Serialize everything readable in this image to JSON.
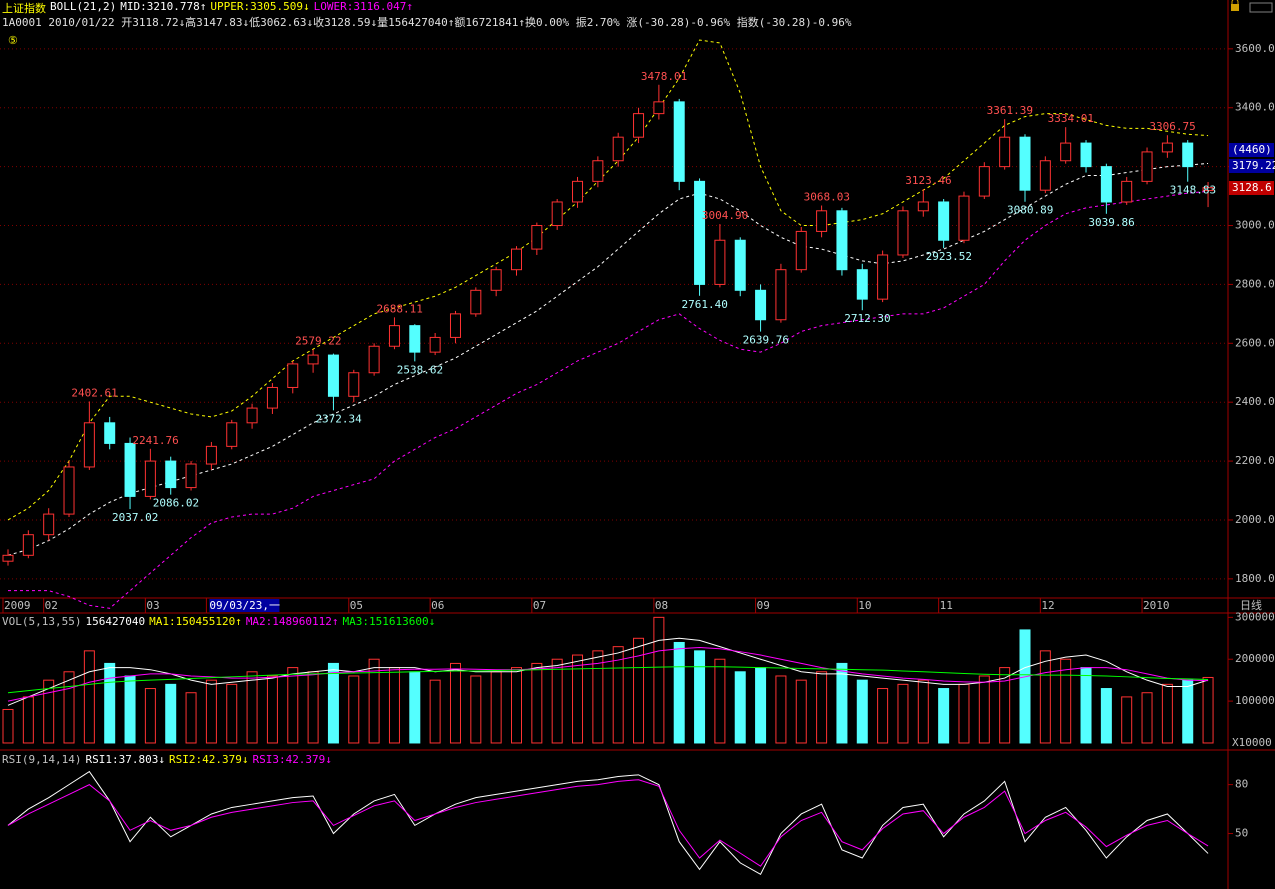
{
  "chart_data": [
    {
      "type": "candlestick",
      "title": "上证指数",
      "indicator": "BOLL(21,2)",
      "legend": [
        {
          "text": "MID:3210.778↑",
          "color": "#ffffff"
        },
        {
          "text": "UPPER:3305.509↓",
          "color": "#ffff00"
        },
        {
          "text": "LOWER:3116.047↑",
          "color": "#ff00ff"
        }
      ],
      "info": "1A0001 2010/01/22 开3118.72↓高3147.83↓低3062.63↓收3128.59↓量156427040↑额16721841↑换0.00% 振2.70% 涨(-30.28)-0.96% 指数(-30.28)-0.96%",
      "marker": "⑤",
      "period": "日线",
      "badges": [
        {
          "text": "(4460)",
          "color": "#0000a0"
        },
        {
          "text": "3179.22",
          "color": "#0000a0"
        },
        {
          "text": "3128.6",
          "color": "#c00000"
        }
      ],
      "categories": [
        "2009",
        null,
        "02",
        null,
        null,
        null,
        null,
        "03",
        null,
        null,
        "09/03/23,一",
        null,
        null,
        null,
        null,
        null,
        null,
        "05",
        null,
        null,
        null,
        "06",
        null,
        null,
        null,
        null,
        "07",
        null,
        null,
        null,
        null,
        null,
        "08",
        null,
        null,
        null,
        null,
        "09",
        null,
        null,
        null,
        null,
        "10",
        null,
        null,
        null,
        "11",
        null,
        null,
        null,
        null,
        "12",
        null,
        null,
        null,
        null,
        "2010",
        null,
        null,
        null
      ],
      "open": [
        1860,
        1880,
        1950,
        2020,
        2180,
        2330,
        2260,
        2080,
        2200,
        2110,
        2190,
        2250,
        2330,
        2380,
        2450,
        2530,
        2560,
        2420,
        2500,
        2590,
        2660,
        2570,
        2620,
        2700,
        2780,
        2850,
        2920,
        3000,
        3080,
        3150,
        3220,
        3300,
        3380,
        3420,
        3150,
        2800,
        2950,
        2780,
        2680,
        2850,
        2980,
        3050,
        2850,
        2750,
        2900,
        3050,
        3080,
        2950,
        3100,
        3200,
        3300,
        3120,
        3220,
        3280,
        3200,
        3080,
        3150,
        3250,
        3280,
        3118.72
      ],
      "high": [
        1900,
        1965,
        2040,
        2200,
        2402.61,
        2350,
        2280,
        2241.76,
        2215,
        2200,
        2265,
        2340,
        2395,
        2465,
        2540,
        2579.22,
        2565,
        2510,
        2600,
        2688.11,
        2665,
        2635,
        2710,
        2790,
        2860,
        2930,
        3010,
        3090,
        3165,
        3235,
        3315,
        3400,
        3478.01,
        3430,
        3160,
        3004.9,
        2960,
        2800,
        2870,
        2995,
        3068.03,
        3060,
        2870,
        2915,
        3065,
        3123.46,
        3090,
        3115,
        3215,
        3361.39,
        3310,
        3235,
        3334.01,
        3290,
        3210,
        3165,
        3265,
        3306.75,
        3290,
        3147.83
      ],
      "low": [
        1845,
        1870,
        1930,
        2010,
        2170,
        2240,
        2037.02,
        2070,
        2086.02,
        2100,
        2170,
        2240,
        2310,
        2360,
        2430,
        2500,
        2372.34,
        2400,
        2490,
        2580,
        2538.62,
        2560,
        2600,
        2690,
        2760,
        2830,
        2900,
        2985,
        3060,
        3130,
        3200,
        3280,
        3360,
        3120,
        2761.4,
        2790,
        2760,
        2639.76,
        2670,
        2840,
        2960,
        2830,
        2712.3,
        2740,
        2890,
        3030,
        2923.52,
        2940,
        3090,
        3190,
        3080.89,
        3110,
        3210,
        3180,
        3039.86,
        3070,
        3140,
        3230,
        3148.83,
        3062.63
      ],
      "close": [
        1880,
        1950,
        2020,
        2180,
        2330,
        2260,
        2080,
        2200,
        2110,
        2190,
        2250,
        2330,
        2380,
        2450,
        2530,
        2560,
        2420,
        2500,
        2590,
        2660,
        2570,
        2620,
        2700,
        2780,
        2850,
        2920,
        3000,
        3080,
        3150,
        3220,
        3300,
        3380,
        3420,
        3150,
        2800,
        2950,
        2780,
        2680,
        2850,
        2980,
        3050,
        2850,
        2750,
        2900,
        3050,
        3080,
        2950,
        3100,
        3200,
        3300,
        3120,
        3220,
        3280,
        3200,
        3080,
        3150,
        3250,
        3280,
        3200,
        3128.59
      ],
      "up_color": "#ff3232",
      "down_color": "#54ffff",
      "series": [
        {
          "color": "#ffffff",
          "values": [
            1880,
            1900,
            1930,
            1970,
            2020,
            2060,
            2090,
            2110,
            2130,
            2150,
            2170,
            2190,
            2220,
            2250,
            2290,
            2330,
            2360,
            2390,
            2420,
            2460,
            2490,
            2520,
            2550,
            2590,
            2630,
            2670,
            2710,
            2760,
            2810,
            2860,
            2920,
            2980,
            3040,
            3090,
            3110,
            3090,
            3050,
            3000,
            2960,
            2930,
            2920,
            2900,
            2880,
            2870,
            2880,
            2900,
            2920,
            2950,
            2980,
            3020,
            3060,
            3100,
            3140,
            3170,
            3170,
            3180,
            3190,
            3200,
            3205,
            3210.778
          ]
        },
        {
          "color": "#ffff00",
          "values": [
            2000,
            2040,
            2100,
            2200,
            2330,
            2420,
            2420,
            2400,
            2380,
            2360,
            2350,
            2370,
            2420,
            2480,
            2540,
            2580,
            2620,
            2660,
            2700,
            2720,
            2740,
            2760,
            2790,
            2830,
            2870,
            2910,
            2960,
            3020,
            3080,
            3150,
            3220,
            3300,
            3400,
            3500,
            3630,
            3620,
            3450,
            3200,
            3050,
            3000,
            3000,
            3010,
            3020,
            3040,
            3080,
            3120,
            3160,
            3220,
            3280,
            3340,
            3370,
            3380,
            3380,
            3360,
            3340,
            3330,
            3330,
            3320,
            3310,
            3305.509
          ]
        },
        {
          "color": "#ff00ff",
          "values": [
            1760,
            1760,
            1760,
            1740,
            1710,
            1700,
            1760,
            1820,
            1880,
            1940,
            1990,
            2010,
            2020,
            2020,
            2040,
            2080,
            2100,
            2120,
            2140,
            2200,
            2240,
            2280,
            2310,
            2350,
            2390,
            2430,
            2460,
            2500,
            2540,
            2570,
            2600,
            2640,
            2680,
            2700,
            2650,
            2610,
            2580,
            2570,
            2600,
            2640,
            2660,
            2670,
            2680,
            2690,
            2700,
            2700,
            2720,
            2760,
            2800,
            2880,
            2950,
            3000,
            3040,
            3060,
            3070,
            3080,
            3090,
            3100,
            3110,
            3116.047
          ]
        }
      ],
      "annotations": [
        {
          "index": 4,
          "text": "2402.61",
          "at": "high"
        },
        {
          "index": 6,
          "text": "2037.02",
          "at": "low"
        },
        {
          "index": 7,
          "text": "2241.76",
          "at": "high"
        },
        {
          "index": 8,
          "text": "2086.02",
          "at": "low"
        },
        {
          "index": 15,
          "text": "2579.22",
          "at": "high"
        },
        {
          "index": 16,
          "text": "2372.34",
          "at": "low"
        },
        {
          "index": 19,
          "text": "2688.11",
          "at": "high"
        },
        {
          "index": 20,
          "text": "2538.62",
          "at": "low"
        },
        {
          "index": 32,
          "text": "3478.01",
          "at": "high"
        },
        {
          "index": 34,
          "text": "2761.40",
          "at": "low"
        },
        {
          "index": 35,
          "text": "3004.90",
          "at": "high"
        },
        {
          "index": 37,
          "text": "2639.76",
          "at": "low"
        },
        {
          "index": 40,
          "text": "3068.03",
          "at": "high"
        },
        {
          "index": 42,
          "text": "2712.30",
          "at": "low"
        },
        {
          "index": 45,
          "text": "3123.46",
          "at": "high"
        },
        {
          "index": 46,
          "text": "2923.52",
          "at": "low"
        },
        {
          "index": 49,
          "text": "3361.39",
          "at": "high"
        },
        {
          "index": 50,
          "text": "3080.89",
          "at": "low"
        },
        {
          "index": 52,
          "text": "3334.01",
          "at": "high"
        },
        {
          "index": 54,
          "text": "3039.86",
          "at": "low"
        },
        {
          "index": 57,
          "text": "3306.75",
          "at": "high"
        },
        {
          "index": 58,
          "text": "3148.83",
          "at": "low"
        }
      ],
      "ylim": [
        1735,
        3698
      ],
      "yticks": [
        {
          "value": 1800,
          "label": "1800.0"
        },
        {
          "value": 2000,
          "label": "2000.0"
        },
        {
          "value": 2200,
          "label": "2200.0"
        },
        {
          "value": 2400,
          "label": "2400.0"
        },
        {
          "value": 2600,
          "label": "2600.0"
        },
        {
          "value": 2800,
          "label": "2800.0"
        },
        {
          "value": 3000,
          "label": "3000.0"
        },
        {
          "value": 3200,
          "label": "3200.0"
        },
        {
          "value": 3400,
          "label": "3400.0"
        },
        {
          "value": 3600,
          "label": "3600.0"
        }
      ],
      "grid": true
    },
    {
      "type": "bar",
      "legend": [
        {
          "text": "VOL(5,13,55)",
          "color": "#c0c0c0"
        },
        {
          "text": "156427040",
          "color": "#ffffff"
        },
        {
          "text": "MA1:150455120↑",
          "color": "#ffff00"
        },
        {
          "text": "MA2:148960112↑",
          "color": "#ff00ff"
        },
        {
          "text": "MA3:151613600↓",
          "color": "#00ff00"
        }
      ],
      "unit": "X10000",
      "values": [
        80000,
        110000,
        150000,
        170000,
        220000,
        190000,
        160000,
        130000,
        140000,
        120000,
        150000,
        140000,
        170000,
        160000,
        180000,
        170000,
        190000,
        160000,
        200000,
        180000,
        170000,
        150000,
        190000,
        160000,
        170000,
        180000,
        190000,
        200000,
        210000,
        220000,
        230000,
        250000,
        300000,
        240000,
        220000,
        200000,
        170000,
        180000,
        160000,
        150000,
        170000,
        190000,
        150000,
        130000,
        140000,
        150000,
        130000,
        140000,
        160000,
        180000,
        270000,
        220000,
        200000,
        180000,
        130000,
        110000,
        120000,
        140000,
        150000,
        156427
      ],
      "series": [
        {
          "color": "#ffffff",
          "values": [
            90000,
            110000,
            130000,
            150000,
            170000,
            180000,
            180000,
            175000,
            165000,
            150000,
            140000,
            145000,
            150000,
            155000,
            165000,
            170000,
            175000,
            170000,
            180000,
            180000,
            180000,
            170000,
            175000,
            170000,
            170000,
            170000,
            180000,
            185000,
            195000,
            205000,
            215000,
            230000,
            245000,
            250000,
            245000,
            230000,
            215000,
            200000,
            185000,
            170000,
            165000,
            165000,
            160000,
            155000,
            150000,
            145000,
            140000,
            140000,
            145000,
            155000,
            180000,
            195000,
            205000,
            210000,
            195000,
            170000,
            150000,
            135000,
            135000,
            150455.12
          ]
        },
        {
          "color": "#ff00ff",
          "values": [
            100000,
            110000,
            120000,
            130000,
            145000,
            155000,
            160000,
            165000,
            165000,
            160000,
            158000,
            155000,
            155000,
            157000,
            160000,
            163000,
            168000,
            170000,
            172000,
            175000,
            176000,
            176000,
            177000,
            176000,
            175000,
            175000,
            177000,
            180000,
            185000,
            190000,
            198000,
            208000,
            220000,
            225000,
            228000,
            225000,
            218000,
            210000,
            200000,
            190000,
            180000,
            172000,
            165000,
            160000,
            155000,
            152000,
            148000,
            146000,
            145000,
            148000,
            158000,
            168000,
            175000,
            180000,
            180000,
            175000,
            165000,
            155000,
            150000,
            148960.112
          ]
        },
        {
          "color": "#00ff00",
          "values": [
            120000,
            125000,
            130000,
            135000,
            140000,
            145000,
            148000,
            150000,
            152000,
            154000,
            156000,
            158000,
            160000,
            162000,
            164000,
            165000,
            166000,
            167000,
            168000,
            169000,
            170000,
            171000,
            172000,
            172000,
            173000,
            174000,
            175000,
            176000,
            177000,
            178000,
            179000,
            180000,
            181000,
            182000,
            182000,
            182000,
            181000,
            180000,
            179000,
            178000,
            177000,
            176000,
            175000,
            174000,
            172000,
            170000,
            168000,
            166000,
            164000,
            163000,
            163000,
            162000,
            162000,
            161000,
            160000,
            158000,
            156000,
            154000,
            153000,
            151613.6
          ]
        }
      ],
      "ylim": [
        -12000,
        308000
      ],
      "yticks": [
        100000,
        200000,
        300000
      ]
    },
    {
      "type": "line",
      "legend": [
        {
          "text": "RSI(9,14,14)",
          "color": "#c0c0c0"
        },
        {
          "text": "RSI1:37.803↓",
          "color": "#ffffff"
        },
        {
          "text": "RSI2:42.379↓",
          "color": "#ffff00"
        },
        {
          "text": "RSI3:42.379↓",
          "color": "#ff00ff"
        }
      ],
      "series": [
        {
          "color": "#ffffff",
          "values": [
            55,
            65,
            72,
            80,
            88,
            70,
            45,
            60,
            48,
            55,
            62,
            66,
            68,
            70,
            72,
            73,
            50,
            62,
            70,
            74,
            55,
            62,
            68,
            72,
            74,
            76,
            78,
            80,
            82,
            83,
            85,
            86,
            80,
            45,
            28,
            45,
            32,
            25,
            50,
            62,
            68,
            40,
            35,
            55,
            66,
            68,
            48,
            62,
            70,
            82,
            45,
            60,
            66,
            52,
            35,
            48,
            58,
            62,
            50,
            37.803
          ]
        },
        {
          "color": "#ff00ff",
          "values": [
            55,
            62,
            68,
            74,
            80,
            70,
            52,
            58,
            52,
            55,
            60,
            63,
            65,
            67,
            69,
            70,
            55,
            61,
            67,
            70,
            58,
            62,
            66,
            69,
            71,
            73,
            75,
            77,
            79,
            80,
            82,
            83,
            79,
            52,
            35,
            46,
            38,
            30,
            48,
            58,
            63,
            45,
            40,
            53,
            62,
            64,
            50,
            60,
            66,
            76,
            50,
            58,
            63,
            54,
            42,
            49,
            55,
            58,
            50,
            42.379
          ]
        }
      ],
      "ylim": [
        16,
        100
      ],
      "yticks": [
        50,
        80
      ]
    }
  ]
}
